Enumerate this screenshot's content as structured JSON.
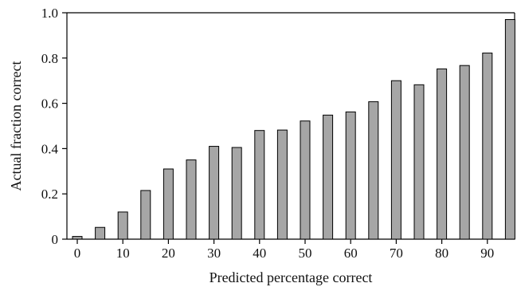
{
  "chart_data": {
    "type": "bar",
    "title": "",
    "xlabel": "Predicted percentage correct",
    "ylabel": "Actual fraction correct",
    "categories": [
      0,
      5,
      10,
      15,
      20,
      25,
      30,
      35,
      40,
      45,
      50,
      55,
      60,
      65,
      70,
      75,
      80,
      85,
      90,
      95
    ],
    "values": [
      0.012,
      0.052,
      0.12,
      0.215,
      0.31,
      0.35,
      0.41,
      0.405,
      0.48,
      0.482,
      0.522,
      0.548,
      0.562,
      0.607,
      0.7,
      0.682,
      0.752,
      0.767,
      0.822,
      0.97
    ],
    "ylim": [
      0,
      1.0
    ],
    "y_ticks": [
      0,
      0.2,
      0.4,
      0.6,
      0.8,
      1.0
    ],
    "y_tick_labels": [
      "0",
      "0.2",
      "0.4",
      "0.6",
      "0.8",
      "1.0"
    ],
    "x_ticks": [
      0,
      10,
      20,
      30,
      40,
      50,
      60,
      70,
      80,
      90
    ],
    "x_tick_labels": [
      "0",
      "10",
      "20",
      "30",
      "40",
      "50",
      "60",
      "70",
      "80",
      "90"
    ],
    "grid": false,
    "legend": "none",
    "colors": {
      "bar_fill": "#a6a6a6",
      "bar_stroke": "#000000",
      "axis": "#000000"
    }
  }
}
